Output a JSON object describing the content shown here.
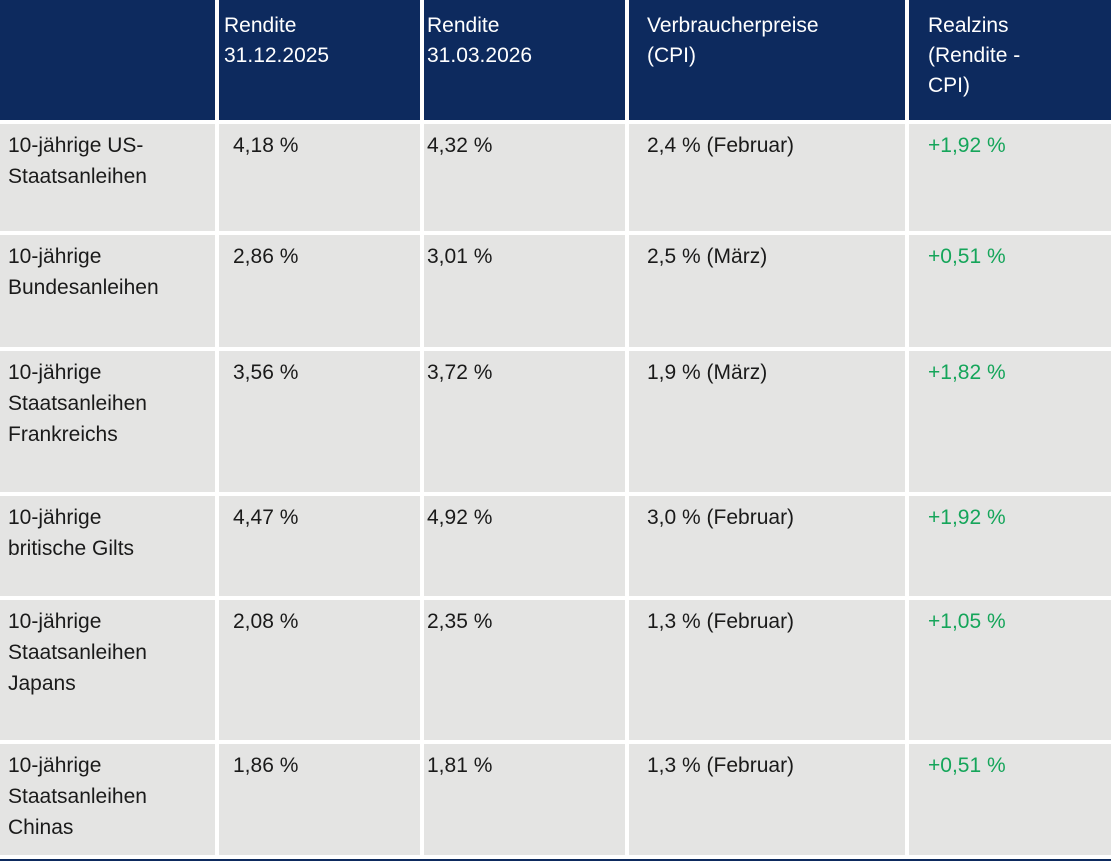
{
  "colors": {
    "header_bg": "#0d2a5e",
    "row_bg": "#e4e4e3",
    "positive_green": "#15a55a",
    "header_text": "#ffffff",
    "body_text": "#1a1a1a"
  },
  "table": {
    "headers": {
      "label": "",
      "yield_dec": "Rendite\n31.12.2025",
      "yield_mar": "Rendite\n31.03.2026",
      "cpi": "Verbraucherpreise\n(CPI)",
      "real": "Realzins\n(Rendite -\nCPI)"
    },
    "rows": [
      {
        "name": "10-jährige US-\nStaatsanleihen",
        "yield_dec": "4,18 %",
        "yield_mar": "4,32 %",
        "cpi": "2,4 % (Februar)",
        "real": "+1,92 %"
      },
      {
        "name": "10-jährige\nBundesanleihen",
        "yield_dec": "2,86 %",
        "yield_mar": "3,01 %",
        "cpi": "2,5 % (März)",
        "real": "+0,51 %"
      },
      {
        "name": "10-jährige\nStaatsanleihen\nFrankreichs",
        "yield_dec": "3,56 %",
        "yield_mar": "3,72 %",
        "cpi": "1,9 % (März)",
        "real": "+1,82 %"
      },
      {
        "name": "10-jährige\nbritische Gilts",
        "yield_dec": "4,47 %",
        "yield_mar": "4,92 %",
        "cpi": "3,0 % (Februar)",
        "real": "+1,92 %"
      },
      {
        "name": "10-jährige\nStaatsanleihen\nJapans",
        "yield_dec": "2,08 %",
        "yield_mar": "2,35 %",
        "cpi": "1,3 % (Februar)",
        "real": "+1,05 %"
      },
      {
        "name": "10-jährige\nStaatsanleihen\nChinas",
        "yield_dec": "1,86 %",
        "yield_mar": "1,81 %",
        "cpi": "1,3 % (Februar)",
        "real": "+0,51 %"
      }
    ]
  },
  "chart_data": {
    "type": "table",
    "columns": [
      "",
      "Rendite 31.12.2025",
      "Rendite 31.03.2026",
      "Verbraucherpreise (CPI)",
      "Realzins (Rendite - CPI)"
    ],
    "rows": [
      [
        "10-jährige US-Staatsanleihen",
        "4,18 %",
        "4,32 %",
        "2,4 % (Februar)",
        "+1,92 %"
      ],
      [
        "10-jährige Bundesanleihen",
        "2,86 %",
        "3,01 %",
        "2,5 % (März)",
        "+0,51 %"
      ],
      [
        "10-jährige Staatsanleihen Frankreichs",
        "3,56 %",
        "3,72 %",
        "1,9 % (März)",
        "+1,82 %"
      ],
      [
        "10-jährige britische Gilts",
        "4,47 %",
        "4,92 %",
        "3,0 % (Februar)",
        "+1,92 %"
      ],
      [
        "10-jährige Staatsanleihen Japans",
        "2,08 %",
        "2,35 %",
        "1,3 % (Februar)",
        "+1,05 %"
      ],
      [
        "10-jährige Staatsanleihen Chinas",
        "1,86 %",
        "1,81 %",
        "1,3 % (Februar)",
        "+0,51 %"
      ]
    ],
    "notes": "Positive Realzins values rendered in green; header row navy with white text; body rows light gray separated by white gutters"
  }
}
